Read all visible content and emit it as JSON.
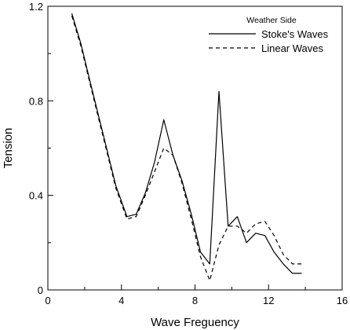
{
  "chart_data": {
    "type": "line",
    "xlabel": "Wave Freguency",
    "ylabel": "Tension",
    "xlim": [
      0,
      16
    ],
    "ylim": [
      0,
      1.2
    ],
    "x_ticks": [
      "0",
      "4",
      "8",
      "12",
      "16"
    ],
    "y_ticks": [
      "0",
      "0.4",
      "0.8",
      "1.2"
    ],
    "grid": false,
    "legend": {
      "title": "Weather Side",
      "placement": "top-right"
    },
    "series": [
      {
        "name": "Stoke's Waves",
        "style": "solid",
        "color": "#000000",
        "x": [
          1.3,
          1.8,
          2.3,
          3.0,
          3.7,
          4.3,
          4.8,
          5.3,
          5.8,
          6.3,
          6.8,
          7.3,
          7.8,
          8.3,
          8.8,
          9.3,
          9.8,
          10.3,
          10.8,
          11.3,
          11.8,
          12.3,
          12.8,
          13.3,
          13.8
        ],
        "y": [
          1.17,
          1.04,
          0.88,
          0.66,
          0.44,
          0.31,
          0.32,
          0.41,
          0.54,
          0.72,
          0.57,
          0.46,
          0.32,
          0.16,
          0.11,
          0.84,
          0.27,
          0.31,
          0.2,
          0.24,
          0.23,
          0.16,
          0.11,
          0.07,
          0.07
        ]
      },
      {
        "name": "Linear Waves",
        "style": "dashed",
        "color": "#000000",
        "x": [
          1.3,
          1.8,
          2.3,
          3.0,
          3.7,
          4.3,
          4.8,
          5.3,
          5.8,
          6.3,
          6.8,
          7.3,
          7.8,
          8.3,
          8.8,
          9.3,
          9.8,
          10.3,
          10.8,
          11.3,
          11.8,
          12.3,
          12.8,
          13.3,
          13.8
        ],
        "y": [
          1.16,
          1.03,
          0.87,
          0.65,
          0.43,
          0.3,
          0.31,
          0.4,
          0.5,
          0.6,
          0.57,
          0.45,
          0.3,
          0.14,
          0.04,
          0.19,
          0.27,
          0.27,
          0.24,
          0.28,
          0.29,
          0.23,
          0.15,
          0.11,
          0.11
        ]
      }
    ]
  }
}
